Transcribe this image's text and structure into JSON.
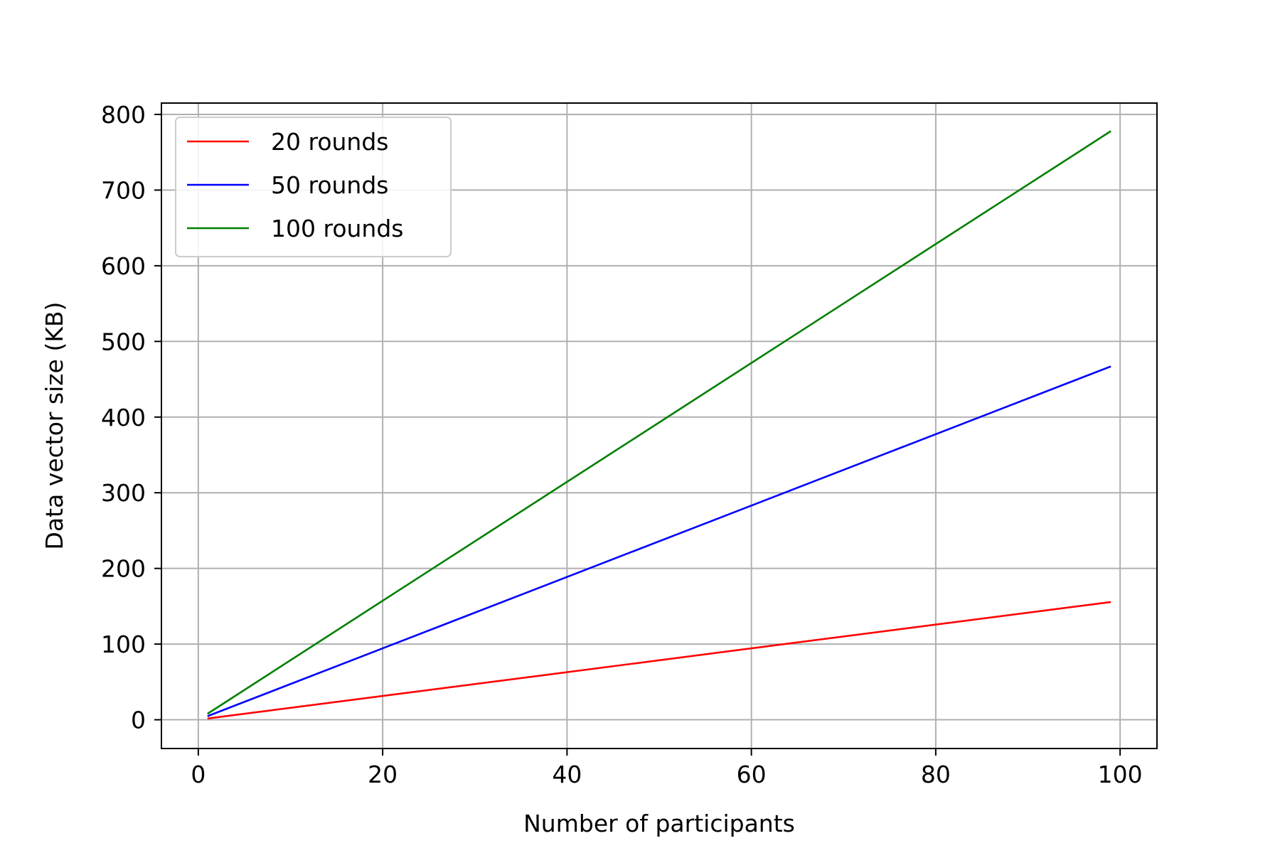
{
  "chart_data": {
    "type": "line",
    "title": "",
    "xlabel": "Number of participants",
    "ylabel": "Data vector size (KB)",
    "xlim": [
      -4,
      104
    ],
    "ylim": [
      -38,
      815
    ],
    "x_ticks": [
      0,
      20,
      40,
      60,
      80,
      100
    ],
    "y_ticks": [
      0,
      100,
      200,
      300,
      400,
      500,
      600,
      700,
      800
    ],
    "grid": true,
    "legend_position": "upper-left",
    "series": [
      {
        "name": "20 rounds",
        "color": "#ff0000",
        "x": [
          1,
          99
        ],
        "y": [
          1.6,
          155.6
        ]
      },
      {
        "name": "50 rounds",
        "color": "#0000ff",
        "x": [
          1,
          99
        ],
        "y": [
          4.7,
          467
        ]
      },
      {
        "name": "100 rounds",
        "color": "#008000",
        "x": [
          1,
          99
        ],
        "y": [
          7.9,
          778
        ]
      }
    ]
  }
}
